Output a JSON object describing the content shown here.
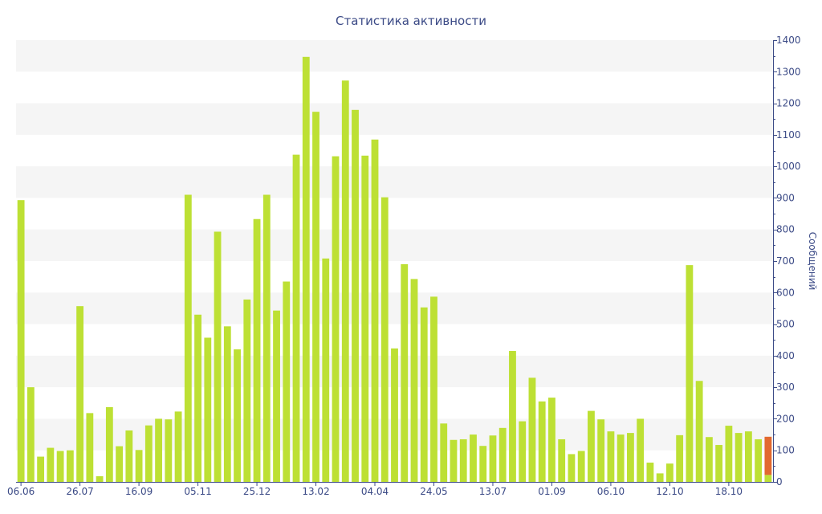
{
  "chart_data": {
    "type": "bar",
    "title": "Статистика активности",
    "ylabel": "Сообщений",
    "xlabel": "",
    "ylim": [
      0,
      1400
    ],
    "yticks": [
      0,
      100,
      200,
      300,
      400,
      500,
      600,
      700,
      800,
      900,
      1000,
      1100,
      1200,
      1300,
      1400
    ],
    "y_axis_side": "right",
    "grid": "alternating horizontal bands",
    "x_tick_labels": [
      {
        "index": 0,
        "label": "06.06"
      },
      {
        "index": 6,
        "label": "26.07"
      },
      {
        "index": 12,
        "label": "16.09"
      },
      {
        "index": 18,
        "label": "05.11"
      },
      {
        "index": 24,
        "label": "25.12"
      },
      {
        "index": 30,
        "label": "13.02"
      },
      {
        "index": 36,
        "label": "04.04"
      },
      {
        "index": 42,
        "label": "24.05"
      },
      {
        "index": 48,
        "label": "13.07"
      },
      {
        "index": 54,
        "label": "01.09"
      },
      {
        "index": 60,
        "label": "06.10"
      },
      {
        "index": 66,
        "label": "12.10"
      },
      {
        "index": 72,
        "label": "18.10"
      }
    ],
    "colors": {
      "bar": "#bde034",
      "highlight": "#e2692f",
      "axis": "#3b4a86",
      "band": "#f5f5f5"
    },
    "values": [
      893,
      300,
      80,
      108,
      98,
      100,
      557,
      218,
      18,
      237,
      113,
      163,
      101,
      179,
      200,
      198,
      223,
      910,
      530,
      457,
      793,
      493,
      420,
      578,
      833,
      910,
      543,
      635,
      1037,
      1347,
      1173,
      708,
      1032,
      1272,
      1179,
      1034,
      1085,
      902,
      423,
      690,
      643,
      553,
      587,
      185,
      133,
      135,
      150,
      114,
      147,
      171,
      415,
      192,
      330,
      255,
      267,
      135,
      88,
      98,
      225,
      198,
      160,
      150,
      155,
      200,
      61,
      27,
      58,
      148,
      687,
      320,
      142,
      117,
      178,
      155,
      160,
      135,
      143
    ],
    "highlight_last": {
      "value": 143,
      "base": 22
    }
  }
}
